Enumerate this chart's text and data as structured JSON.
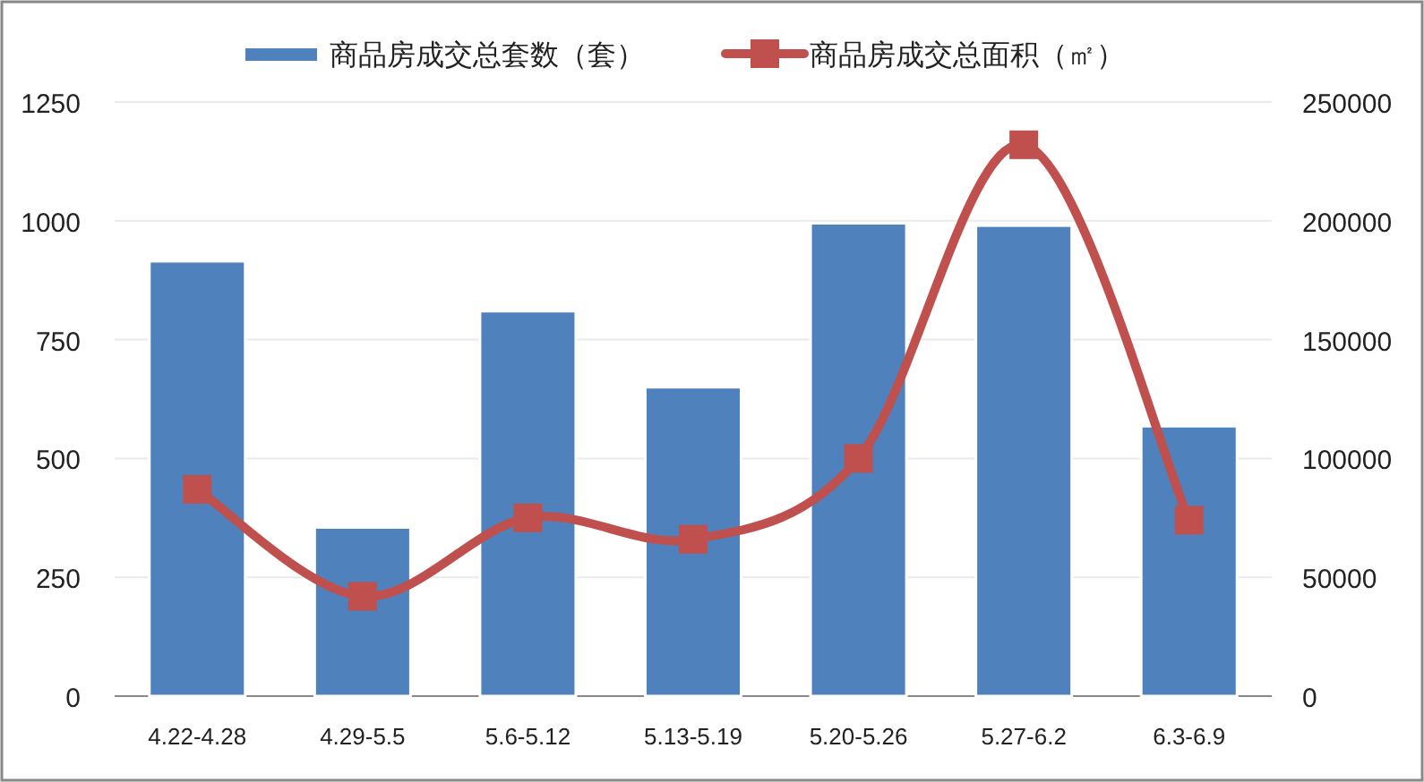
{
  "chart_data": {
    "type": "bar",
    "categories": [
      "4.22-4.28",
      "4.29-5.5",
      "5.6-5.12",
      "5.13-5.19",
      "5.20-5.26",
      "5.27-6.2",
      "6.3-6.9"
    ],
    "series": [
      {
        "name": "商品房成交总套数（套）",
        "color": "#4f81bd",
        "values": [
          915,
          355,
          810,
          650,
          995,
          990,
          568
        ]
      },
      {
        "name": "商品房成交总面积（㎡）",
        "type": "line",
        "axis": "y2",
        "color": "#c0504d",
        "marker": "square",
        "line_style": "solid",
        "values": [
          87000,
          42000,
          75000,
          66000,
          100000,
          232000,
          74000
        ]
      }
    ],
    "ylim": [
      0,
      1250
    ],
    "yticks": [
      0,
      250,
      500,
      750,
      1000,
      1250
    ],
    "y2lim": [
      0,
      250000
    ],
    "y2ticks": [
      0,
      50000,
      100000,
      150000,
      200000,
      250000
    ],
    "grid": "y",
    "legend": "top"
  }
}
